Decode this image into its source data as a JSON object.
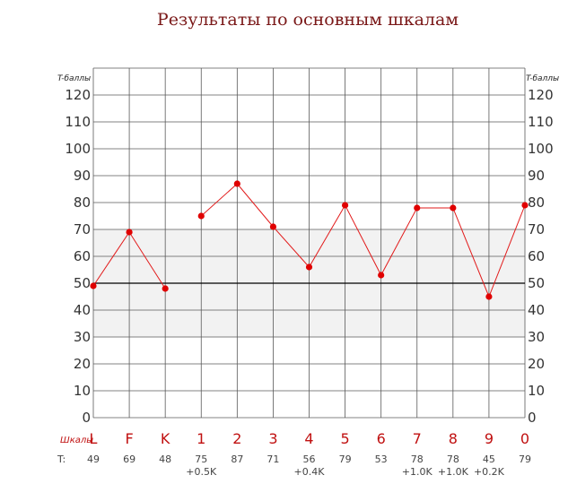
{
  "chart_data": {
    "type": "line",
    "title": "Результаты по основным шкалам",
    "y_unit_label": "T-баллы",
    "ylim": [
      0,
      120
    ],
    "yticks": [
      0,
      10,
      20,
      30,
      40,
      50,
      60,
      70,
      80,
      90,
      100,
      110,
      120
    ],
    "normal_band": [
      30,
      70
    ],
    "reference_line": 50,
    "grid": true,
    "scales_row_label": "Шкалы",
    "t_row_label": "T:",
    "categories": [
      "L",
      "F",
      "K",
      "1",
      "2",
      "3",
      "4",
      "5",
      "6",
      "7",
      "8",
      "9",
      "0"
    ],
    "values": [
      49,
      69,
      48,
      75,
      87,
      71,
      56,
      79,
      53,
      78,
      78,
      45,
      79
    ],
    "corrections": [
      "",
      "",
      "",
      "+0.5K",
      "",
      "",
      "+0.4K",
      "",
      "",
      "+1.0K",
      "+1.0K",
      "+0.2K",
      ""
    ],
    "connected_segments": [
      [
        0,
        2
      ],
      [
        3,
        12
      ]
    ],
    "colors": {
      "line": "#e21b1b",
      "point": "#e00000",
      "band": "#f2f2f2",
      "grid": "#5a5a5a",
      "title": "#7a1818",
      "scale_label": "#c01010"
    }
  }
}
